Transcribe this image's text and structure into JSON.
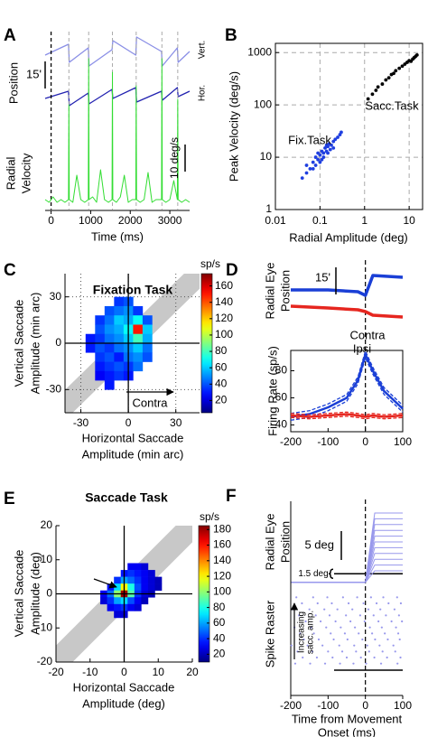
{
  "chart_data": [
    {
      "label": "A",
      "type": "line",
      "ylabel": "Position",
      "x": [
        -150,
        440,
        460,
        940,
        960,
        1540,
        1560,
        2140,
        2160,
        2790,
        2810,
        3190,
        3210,
        3500
      ],
      "series": [
        {
          "name": "Vert.",
          "color": "#8a8fe6",
          "values": [
            12,
            18,
            8,
            16,
            6,
            15,
            20,
            12,
            22,
            14,
            6,
            16,
            8,
            14
          ]
        },
        {
          "name": "Hor.",
          "color": "#2222b0",
          "values": [
            -12,
            -8,
            -16,
            -9,
            -15,
            -7,
            -12,
            -6,
            -14,
            -8,
            -13,
            -6,
            -11,
            -8
          ]
        }
      ],
      "xlim": [
        -150,
        3500
      ],
      "ylim": [
        -30,
        25
      ],
      "scalebar": {
        "label": "15'",
        "value": 15
      }
    },
    {
      "type": "line",
      "ylabel": [
        "Radial",
        "Velocity"
      ],
      "xlabel": "Time (ms)",
      "x": [
        -150,
        -50,
        50,
        150,
        250,
        350,
        440,
        450,
        460,
        550,
        650,
        750,
        850,
        940,
        950,
        960,
        1050,
        1150,
        1250,
        1350,
        1450,
        1540,
        1550,
        1560,
        1650,
        1750,
        1850,
        1950,
        2050,
        2140,
        2150,
        2160,
        2250,
        2350,
        2450,
        2550,
        2650,
        2790,
        2800,
        2810,
        2900,
        3000,
        3100,
        3190,
        3200,
        3210,
        3300,
        3400,
        3500
      ],
      "series": [
        {
          "color": "#33dd33",
          "values": [
            3,
            2,
            4,
            2,
            3,
            2,
            3,
            38,
            3,
            2,
            12,
            3,
            2,
            3,
            55,
            3,
            4,
            2,
            14,
            3,
            2,
            3,
            50,
            3,
            2,
            4,
            12,
            2,
            3,
            3,
            45,
            3,
            2,
            3,
            13,
            2,
            3,
            3,
            55,
            3,
            2,
            3,
            10,
            3,
            40,
            3,
            2,
            3,
            2
          ]
        }
      ],
      "xlim": [
        -150,
        3500
      ],
      "ylim": [
        0,
        60
      ],
      "xticks": [
        0,
        1000,
        2000,
        3000
      ],
      "events": [
        0,
        450,
        950,
        1550,
        2150,
        2800,
        3200
      ],
      "scalebar": {
        "label": "10 deg/s",
        "value": 10
      }
    },
    {
      "label": "B",
      "type": "scatter",
      "xlabel": "Radial Amplitude (deg)",
      "ylabel": "Peak Velocity (deg/s)",
      "xlog": true,
      "ylog": true,
      "xlim": [
        0.01,
        20
      ],
      "ylim": [
        1,
        1500
      ],
      "xticks": [
        0.01,
        0.1,
        1,
        10
      ],
      "yticks": [
        1,
        10,
        100,
        1000
      ],
      "grid": true,
      "series": [
        {
          "name": "Fix.Task",
          "color": "#1f3fe0",
          "x": [
            0.04,
            0.05,
            0.06,
            0.05,
            0.07,
            0.08,
            0.08,
            0.09,
            0.1,
            0.1,
            0.11,
            0.12,
            0.12,
            0.13,
            0.14,
            0.15,
            0.15,
            0.16,
            0.18,
            0.2,
            0.2,
            0.22,
            0.25,
            0.28,
            0.3,
            0.07,
            0.09,
            0.11,
            0.14,
            0.17
          ],
          "values": [
            4,
            5,
            6,
            7,
            8,
            7,
            10,
            9,
            11,
            8,
            13,
            12,
            10,
            15,
            13,
            16,
            12,
            18,
            17,
            20,
            15,
            22,
            24,
            27,
            30,
            6,
            12,
            9,
            17,
            14
          ]
        },
        {
          "name": "Sacc.Task",
          "color": "#000000",
          "x": [
            1.2,
            1.5,
            1.8,
            2,
            2.5,
            3,
            3.5,
            4,
            4.5,
            5,
            6,
            7,
            8,
            9,
            10,
            11,
            12,
            13,
            14,
            15
          ],
          "values": [
            130,
            160,
            190,
            220,
            250,
            300,
            330,
            380,
            400,
            450,
            500,
            550,
            600,
            650,
            700,
            680,
            750,
            800,
            850,
            900
          ]
        }
      ]
    },
    {
      "label": "C",
      "type": "heatmap",
      "title": "Fixation Task",
      "xlabel": [
        "Horizontal Saccade",
        "Amplitude (min arc)"
      ],
      "ylabel": [
        "Vertical Saccade",
        "Amplitude (min arc)"
      ],
      "xlim": [
        -40,
        45
      ],
      "ylim": [
        -45,
        45
      ],
      "xticks": [
        -30,
        0,
        30
      ],
      "yticks": [
        -30,
        0,
        30
      ],
      "grid": "dotted",
      "colormap": "jet",
      "annotation": "Contra",
      "x": [
        -24,
        -18,
        -12,
        -6,
        0,
        6,
        12,
        18
      ],
      "y": [
        27,
        21,
        15,
        9,
        3,
        -3,
        -9,
        -15,
        -21,
        -27
      ],
      "z": [
        [
          null,
          null,
          null,
          35,
          40,
          null,
          null,
          null
        ],
        [
          null,
          null,
          40,
          45,
          50,
          35,
          null,
          null
        ],
        [
          null,
          35,
          45,
          60,
          55,
          70,
          40,
          null
        ],
        [
          null,
          40,
          50,
          55,
          70,
          150,
          60,
          null
        ],
        [
          30,
          35,
          45,
          50,
          60,
          80,
          55,
          null
        ],
        [
          30,
          40,
          35,
          45,
          50,
          60,
          45,
          null
        ],
        [
          null,
          35,
          40,
          30,
          45,
          50,
          40,
          null
        ],
        [
          null,
          30,
          35,
          40,
          35,
          45,
          null,
          null
        ],
        [
          null,
          25,
          30,
          35,
          30,
          null,
          null,
          null
        ],
        [
          null,
          null,
          30,
          null,
          null,
          null,
          null,
          null
        ]
      ],
      "colorbar": {
        "title": "sp/s",
        "lim": [
          5,
          175
        ],
        "ticks": [
          20,
          40,
          60,
          80,
          100,
          120,
          140,
          160
        ]
      }
    },
    {
      "label": "D",
      "type": "line",
      "ylabel": [
        "Radial Eye",
        "Position"
      ],
      "x": [
        -200,
        -100,
        -20,
        0,
        20,
        100
      ],
      "series": [
        {
          "name": "Contra",
          "color": "#1a3fd6",
          "values": [
            -13,
            -13,
            -14,
            -16,
            -5,
            -6
          ]
        },
        {
          "name": "Ipsi",
          "color": "#e6261f",
          "values": [
            -22,
            -23,
            -24,
            -25,
            -27,
            -28
          ]
        }
      ],
      "xlim": [
        -200,
        100
      ],
      "ylim": [
        -30,
        0
      ],
      "scalebar": {
        "label": "15'",
        "value": 15
      }
    },
    {
      "type": "line",
      "ylabel": "Firing Rate (sp/s)",
      "x": [
        -200,
        -150,
        -100,
        -50,
        -20,
        0,
        20,
        50,
        100
      ],
      "series": [
        {
          "color": "#1a3fd6",
          "values": [
            46,
            48,
            53,
            60,
            73,
            92,
            80,
            65,
            52
          ],
          "error": [
            2.5,
            2.5,
            2.5,
            2.5,
            2.5,
            2.5,
            2.5,
            2.5,
            2.5
          ]
        },
        {
          "color": "#e6261f",
          "values": [
            47,
            46,
            47,
            48,
            47,
            46,
            47,
            46,
            47
          ],
          "error": [
            1.5,
            1.5,
            1.5,
            1.5,
            1.5,
            1.5,
            1.5,
            1.5,
            1.5
          ]
        }
      ],
      "xlim": [
        -200,
        100
      ],
      "ylim": [
        35,
        95
      ],
      "xticks": [
        -200,
        -100,
        0,
        100
      ],
      "yticks": [
        40,
        60,
        80
      ]
    },
    {
      "label": "E",
      "type": "heatmap",
      "title": "Saccade Task",
      "xlabel": [
        "Horizontal Saccade",
        "Amplitude (deg)"
      ],
      "ylabel": [
        "Vertical Saccade",
        "Amplitude (deg)"
      ],
      "xlim": [
        -20,
        20
      ],
      "ylim": [
        -20,
        20
      ],
      "xticks": [
        -20,
        -10,
        0,
        10,
        20
      ],
      "yticks": [
        -20,
        -10,
        0,
        10,
        20
      ],
      "colormap": "jet",
      "x": [
        -8,
        -6,
        -4,
        -2,
        0,
        2,
        4,
        6,
        8,
        10,
        12
      ],
      "y": [
        8,
        6,
        4,
        2,
        0,
        -2,
        -4,
        -6
      ],
      "z": [
        [
          null,
          null,
          null,
          null,
          null,
          30,
          30,
          25,
          null,
          null,
          null
        ],
        [
          null,
          null,
          null,
          null,
          35,
          40,
          35,
          30,
          25,
          null,
          null
        ],
        [
          null,
          null,
          null,
          40,
          60,
          50,
          40,
          30,
          25,
          20,
          null
        ],
        [
          null,
          null,
          35,
          70,
          120,
          80,
          45,
          30,
          25,
          20,
          null
        ],
        [
          null,
          30,
          50,
          100,
          180,
          90,
          40,
          25,
          20,
          null,
          null
        ],
        [
          null,
          25,
          40,
          60,
          70,
          45,
          30,
          20,
          null,
          null,
          null
        ],
        [
          null,
          null,
          30,
          35,
          40,
          30,
          25,
          null,
          null,
          null,
          null
        ],
        [
          null,
          null,
          null,
          25,
          25,
          null,
          null,
          null,
          null,
          null,
          null
        ]
      ],
      "colorbar": {
        "title": "sp/s",
        "lim": [
          10,
          185
        ],
        "ticks": [
          20,
          40,
          60,
          80,
          100,
          120,
          140,
          160,
          180
        ]
      }
    },
    {
      "label": "F",
      "type": "line",
      "ylabel": [
        "Radial Eye",
        "Position"
      ],
      "x": [
        -200,
        0,
        25,
        100
      ],
      "series": [
        {
          "color": "#9898ec",
          "values": [
            0,
            0,
            2,
            2
          ]
        },
        {
          "color": "#9898ec",
          "values": [
            0,
            0,
            3,
            3
          ]
        },
        {
          "color": "#9898ec",
          "values": [
            0,
            0,
            4,
            4
          ]
        },
        {
          "color": "#9898ec",
          "values": [
            0,
            0,
            5,
            5
          ]
        },
        {
          "color": "#9898ec",
          "values": [
            0,
            0,
            6,
            6
          ]
        },
        {
          "color": "#9898ec",
          "values": [
            0,
            0,
            7,
            7
          ]
        },
        {
          "color": "#9898ec",
          "values": [
            0,
            0,
            8,
            8
          ]
        },
        {
          "color": "#9898ec",
          "values": [
            0,
            0,
            9,
            9
          ]
        },
        {
          "color": "#9898ec",
          "values": [
            0,
            0,
            10,
            10
          ]
        },
        {
          "color": "#9898ec",
          "values": [
            0,
            0,
            11,
            11
          ]
        },
        {
          "color": "#9898ec",
          "values": [
            0,
            0,
            12,
            12
          ]
        }
      ],
      "xlim": [
        -200,
        100
      ],
      "ylim": [
        -0.5,
        13
      ],
      "scalebar": {
        "label": "5 deg",
        "value": 5
      },
      "threshold": {
        "label": "1.5 deg",
        "value": 1.5
      }
    },
    {
      "type": "raster",
      "ylabel": "Spike Raster",
      "annotation": [
        "Increasing",
        "sacc. amp."
      ],
      "xlabel": [
        "Time from Movement",
        "Onset (ms)"
      ],
      "xlim": [
        -200,
        100
      ],
      "xticks": [
        -200,
        -100,
        0,
        100
      ],
      "color": "#9898ec",
      "trials": [
        [
          -185,
          -140,
          -102,
          -60,
          -22,
          15,
          48,
          85
        ],
        [
          -170,
          -128,
          -90,
          -45,
          -5,
          30,
          62,
          95
        ],
        [
          -195,
          -150,
          -110,
          -75,
          -35,
          8,
          40,
          78
        ],
        [
          -178,
          -133,
          -96,
          -52,
          -14,
          22,
          55,
          90
        ],
        [
          -160,
          -120,
          -80,
          -40,
          -2,
          35,
          70,
          98
        ],
        [
          -190,
          -145,
          -105,
          -66,
          -28,
          12,
          44,
          82
        ],
        [
          -175,
          -138,
          -93,
          -55,
          -18,
          18,
          52,
          88
        ],
        [
          -165,
          -125,
          -85,
          -48,
          -8,
          26,
          60,
          92
        ],
        [
          -198,
          -155,
          -115,
          -70,
          -30,
          5,
          38,
          75
        ],
        [
          -182,
          -142,
          -100,
          -62,
          -25,
          10,
          46,
          80
        ],
        [
          -168,
          -130,
          -88,
          -50,
          -12,
          24,
          58,
          94
        ],
        [
          -188,
          -148,
          -108,
          -68,
          -32,
          2,
          42,
          86
        ]
      ]
    }
  ]
}
